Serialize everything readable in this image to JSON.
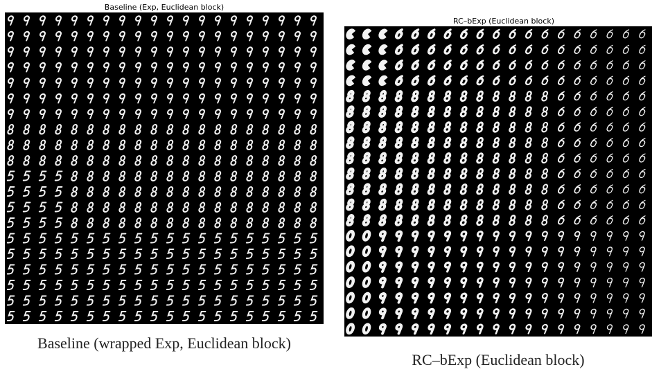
{
  "panels": [
    {
      "title": "Baseline (Exp, Euclidean block)",
      "caption": "Baseline (wrapped Exp, Euclidean block)"
    },
    {
      "title": "RC–bExp (Euclidean block)",
      "caption": "RC–bExp (Euclidean block)"
    }
  ]
}
